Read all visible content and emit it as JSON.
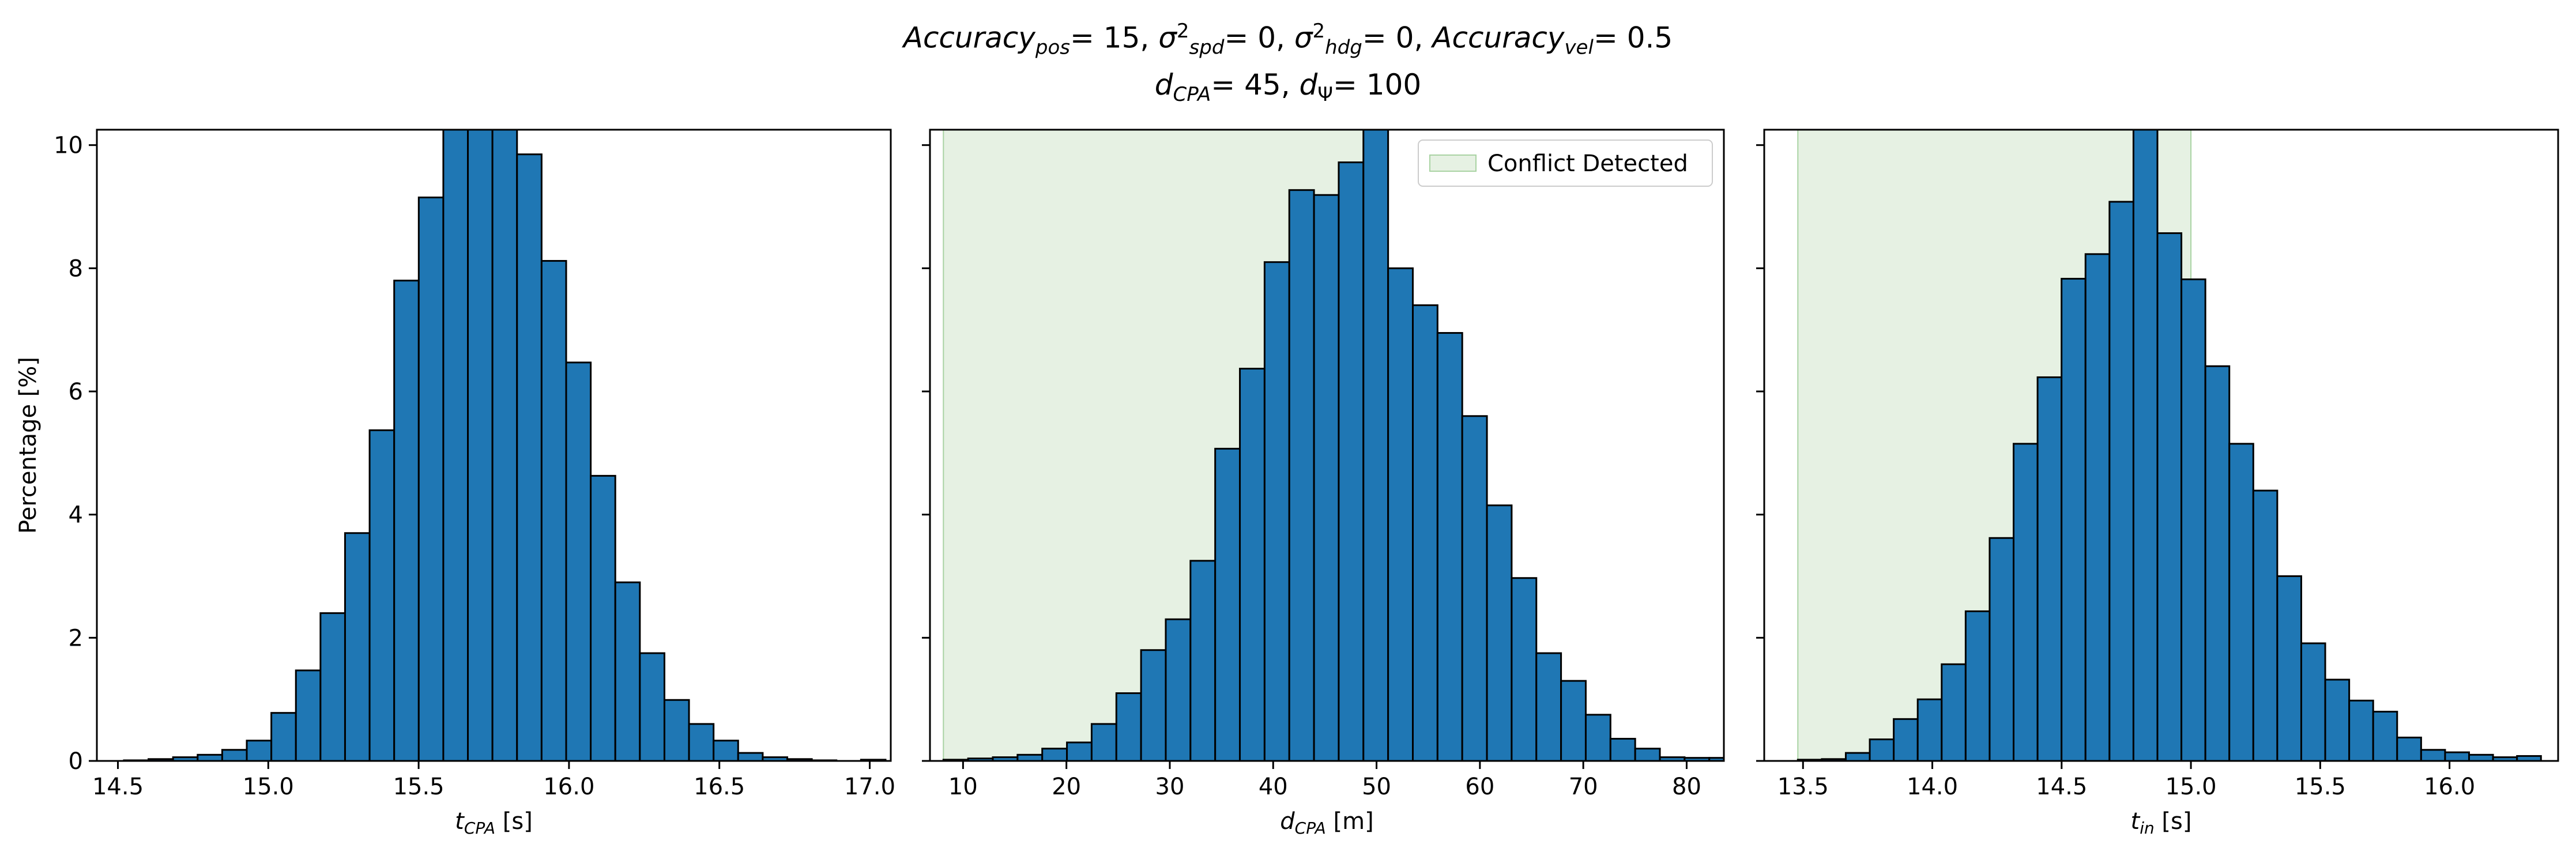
{
  "title_parts": {
    "acc_pos_base": "Accuracy",
    "acc_pos_sub": "pos",
    "acc_pos_val": "= 15, ",
    "sigma": "σ",
    "spd_sub": "spd",
    "sq": "2",
    "spd_val": "= 0, ",
    "hdg_sub": "hdg",
    "hdg_val": "= 0, ",
    "acc_vel_base": "Accuracy",
    "acc_vel_sub": "vel",
    "acc_vel_val": "= 0.5",
    "d": "d",
    "dcpa_sub": "CPA",
    "dcpa_val": "= 45, ",
    "dpsi_sub": "Ψ",
    "dpsi_val": "= 100"
  },
  "ylabel": "Percentage [%]",
  "legend_label": "Conflict Detected",
  "colors": {
    "bar": "#1f77b4",
    "edge": "#000000",
    "conflict": "#e6f1e3",
    "conflict_edge": "#a9d3a3"
  },
  "chart_data": [
    {
      "type": "bar",
      "name": "t_cpa",
      "xlabel_base": "t",
      "xlabel_sub": "CPA",
      "xlabel_unit": " [s]",
      "xlim": [
        14.43,
        17.07
      ],
      "ylim": [
        0,
        10.25
      ],
      "xticks": [
        14.5,
        15.0,
        15.5,
        16.0,
        16.5,
        17.0
      ],
      "xtick_labels": [
        "14.5",
        "15.0",
        "15.5",
        "16.0",
        "16.5",
        "17.0"
      ],
      "yticks": [
        0,
        2,
        4,
        6,
        8,
        10
      ],
      "ytick_labels": [
        "0",
        "2",
        "4",
        "6",
        "8",
        "10"
      ],
      "bin_start": 14.52,
      "bin_width": 0.0817,
      "values": [
        0.01,
        0.03,
        0.06,
        0.1,
        0.18,
        0.33,
        0.78,
        1.47,
        2.4,
        3.7,
        5.37,
        7.8,
        9.15,
        11.5,
        11.8,
        10.6,
        9.85,
        8.12,
        6.47,
        4.63,
        2.9,
        1.75,
        0.99,
        0.6,
        0.33,
        0.13,
        0.06,
        0.03,
        0.01,
        0.0,
        0.02
      ]
    },
    {
      "type": "bar",
      "name": "d_cpa",
      "xlabel_base": "d",
      "xlabel_sub": "CPA",
      "xlabel_unit": " [m]",
      "xlim": [
        6.8,
        83.6
      ],
      "ylim": [
        0,
        10.25
      ],
      "xticks": [
        10,
        20,
        30,
        40,
        50,
        60,
        70,
        80
      ],
      "xtick_labels": [
        "10",
        "20",
        "30",
        "40",
        "50",
        "60",
        "70",
        "80"
      ],
      "yticks": [
        0,
        2,
        4,
        6,
        8,
        10
      ],
      "ytick_labels": [
        "",
        "",
        "",
        "",
        "",
        ""
      ],
      "bin_start": 8.1,
      "bin_width": 2.39,
      "values": [
        0.02,
        0.04,
        0.06,
        0.1,
        0.2,
        0.3,
        0.6,
        1.1,
        1.8,
        2.3,
        3.25,
        5.07,
        6.37,
        8.1,
        9.27,
        9.19,
        9.72,
        10.5,
        8.0,
        7.4,
        6.95,
        5.6,
        4.15,
        2.97,
        1.75,
        1.3,
        0.75,
        0.36,
        0.2,
        0.06,
        0.05,
        0.05
      ],
      "conflict_range": [
        8.1,
        50.0
      ],
      "legend": "top-right"
    },
    {
      "type": "bar",
      "name": "t_in",
      "xlabel_base": "t",
      "xlabel_sub": "in",
      "xlabel_unit": " [s]",
      "xlim": [
        13.35,
        16.42
      ],
      "ylim": [
        0,
        10.25
      ],
      "xticks": [
        13.5,
        14.0,
        14.5,
        15.0,
        15.5,
        16.0
      ],
      "xtick_labels": [
        "13.5",
        "14.0",
        "14.5",
        "15.0",
        "15.5",
        "16.0"
      ],
      "yticks": [
        0,
        2,
        4,
        6,
        8,
        10
      ],
      "ytick_labels": [
        "",
        "",
        "",
        "",
        "",
        ""
      ],
      "bin_start": 13.48,
      "bin_width": 0.0927,
      "values": [
        0.02,
        0.03,
        0.13,
        0.35,
        0.68,
        1.0,
        1.57,
        2.43,
        3.62,
        5.15,
        6.23,
        7.83,
        8.23,
        9.08,
        10.6,
        8.57,
        7.82,
        6.41,
        5.15,
        4.39,
        3.0,
        1.91,
        1.32,
        0.98,
        0.8,
        0.38,
        0.18,
        0.14,
        0.1,
        0.06,
        0.08
      ],
      "conflict_range": [
        13.48,
        15.0
      ]
    }
  ]
}
